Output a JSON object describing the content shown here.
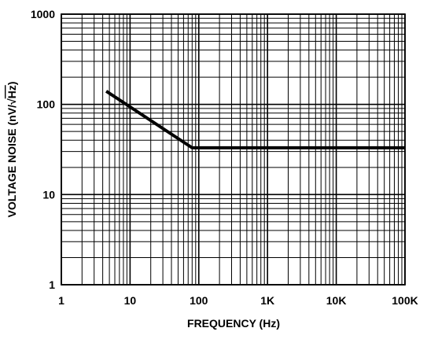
{
  "chart_data": {
    "type": "line",
    "title": "",
    "xlabel": "FREQUENCY (Hz)",
    "ylabel": "VOLTAGE NOISE (nV/√Hz)",
    "ylabel_prefix": "VOLTAGE NOISE (nV/",
    "ylabel_radical": "√",
    "ylabel_radicand": "Hz",
    "ylabel_suffix": ")",
    "xscale": "log",
    "yscale": "log",
    "xlim": [
      1,
      100000
    ],
    "ylim": [
      1,
      1000
    ],
    "grid": true,
    "x_tick_values": [
      1,
      10,
      100,
      1000,
      10000,
      100000
    ],
    "x_tick_labels": [
      "1",
      "10",
      "100",
      "1K",
      "10K",
      "100K"
    ],
    "y_tick_values": [
      1,
      10,
      100,
      1000
    ],
    "y_tick_labels": [
      "1",
      "10",
      "100",
      "1000"
    ],
    "series": [
      {
        "x": [
          4.5,
          80,
          100000
        ],
        "y": [
          140,
          33,
          33
        ]
      }
    ],
    "colors": {
      "line": "#000000",
      "grid": "#000000",
      "background": "#ffffff"
    }
  }
}
